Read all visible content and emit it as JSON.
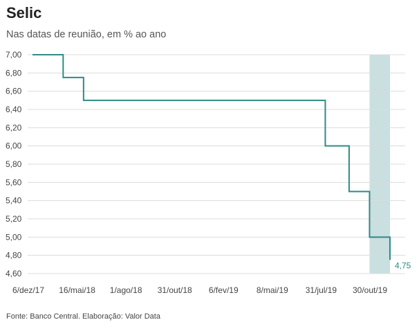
{
  "chart_data": {
    "type": "line",
    "title": "Selic",
    "subtitle": "Nas datas de reunião, em % ao ano",
    "source": "Fonte: Banco Central. Elaboração: Valor Data",
    "line_shape": "step",
    "series_color": "#2e8b84",
    "highlight_color": "#c9dfe0",
    "grid": true,
    "ylim": [
      4.6,
      7.0
    ],
    "yticks": [
      "7,00",
      "6,80",
      "6,60",
      "6,40",
      "6,20",
      "6,00",
      "5,80",
      "5,60",
      "5,40",
      "5,20",
      "5,00",
      "4,80",
      "4,60"
    ],
    "xticks": [
      "6/dez/17",
      "16/mai/18",
      "1/ago/18",
      "31/out/18",
      "6/fev/19",
      "8/mai/19",
      "31/jul/19",
      "30/out/19"
    ],
    "highlight": {
      "x_start": "2019-10-30",
      "x_end": "2019-12-11"
    },
    "series": [
      {
        "x": [
          "2017-12-06",
          "2018-02-07",
          "2018-03-21",
          "2018-05-16",
          "2018-06-20",
          "2018-08-01",
          "2018-09-19",
          "2018-10-31",
          "2018-12-12",
          "2019-02-06",
          "2019-03-20",
          "2019-05-08",
          "2019-06-19",
          "2019-07-31",
          "2019-09-18",
          "2019-10-30",
          "2019-12-11"
        ],
        "y": [
          7.0,
          6.75,
          6.5,
          6.5,
          6.5,
          6.5,
          6.5,
          6.5,
          6.5,
          6.5,
          6.5,
          6.5,
          6.5,
          6.0,
          5.5,
          5.0,
          4.75
        ]
      }
    ],
    "end_label": "4,75"
  }
}
